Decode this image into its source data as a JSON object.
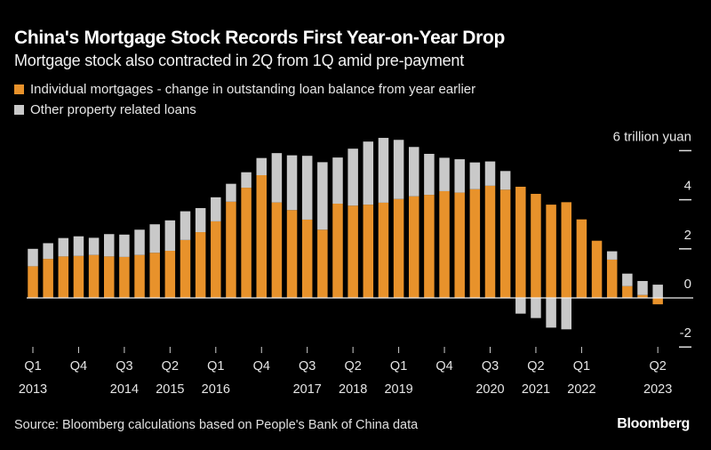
{
  "title": "China's Mortgage Stock Records First Year-on-Year Drop",
  "subtitle": "Mortgage stock also contracted in 2Q from 1Q amid pre-payment",
  "source": "Source: Bloomberg calculations based on People's Bank of China data",
  "logo": "Bloomberg",
  "colors": {
    "background": "#000000",
    "individual": "#e8922b",
    "other": "#c9c9c9",
    "text": "#ffffff"
  },
  "chart_data": {
    "type": "bar",
    "stacked": true,
    "title": "China's Mortgage Stock Records First Year-on-Year Drop",
    "unit_label": "6 trillion yuan",
    "ylim": [
      -2.6,
      6.6
    ],
    "yticks": [
      {
        "value": 6,
        "label": "6 trillion yuan"
      },
      {
        "value": 4,
        "label": "4"
      },
      {
        "value": 2,
        "label": "2"
      },
      {
        "value": 0,
        "label": "0"
      },
      {
        "value": -2,
        "label": "-2"
      }
    ],
    "legend_position": "top-left",
    "grid": false,
    "categories": [
      "Q1 2013",
      "Q2 2013",
      "Q3 2013",
      "Q4 2013",
      "Q1 2014",
      "Q2 2014",
      "Q3 2014",
      "Q4 2014",
      "Q1 2015",
      "Q2 2015",
      "Q3 2015",
      "Q4 2015",
      "Q1 2016",
      "Q2 2016",
      "Q3 2016",
      "Q4 2016",
      "Q1 2017",
      "Q2 2017",
      "Q3 2017",
      "Q4 2017",
      "Q1 2018",
      "Q2 2018",
      "Q3 2018",
      "Q4 2018",
      "Q1 2019",
      "Q2 2019",
      "Q3 2019",
      "Q4 2019",
      "Q1 2020",
      "Q2 2020",
      "Q3 2020",
      "Q4 2020",
      "Q1 2021",
      "Q2 2021",
      "Q3 2021",
      "Q4 2021",
      "Q1 2022",
      "Q2 2022",
      "Q3 2022",
      "Q4 2022",
      "Q1 2023",
      "Q2 2023"
    ],
    "xticks": [
      {
        "index": 0,
        "q": "Q1",
        "year": "2013"
      },
      {
        "index": 3,
        "q": "Q4",
        "year": ""
      },
      {
        "index": 6,
        "q": "Q3",
        "year": "2014"
      },
      {
        "index": 9,
        "q": "Q2",
        "year": "2015"
      },
      {
        "index": 12,
        "q": "Q1",
        "year": "2016"
      },
      {
        "index": 15,
        "q": "Q4",
        "year": ""
      },
      {
        "index": 18,
        "q": "Q3",
        "year": "2017"
      },
      {
        "index": 21,
        "q": "Q2",
        "year": "2018"
      },
      {
        "index": 24,
        "q": "Q1",
        "year": "2019"
      },
      {
        "index": 27,
        "q": "Q4",
        "year": ""
      },
      {
        "index": 30,
        "q": "Q3",
        "year": "2020"
      },
      {
        "index": 33,
        "q": "Q2",
        "year": "2021"
      },
      {
        "index": 36,
        "q": "Q1",
        "year": "2022"
      },
      {
        "index": 41,
        "q": "Q2",
        "year": "2023"
      }
    ],
    "series": [
      {
        "name": "Individual mortgages - change in outstanding loan balance from year earlier",
        "color": "#e8922b",
        "values": [
          1.29,
          1.59,
          1.69,
          1.71,
          1.75,
          1.69,
          1.67,
          1.75,
          1.84,
          1.92,
          2.36,
          2.68,
          3.12,
          3.92,
          4.49,
          5.0,
          3.89,
          3.58,
          3.19,
          2.78,
          3.84,
          3.76,
          3.8,
          3.88,
          4.03,
          4.14,
          4.2,
          4.35,
          4.29,
          4.43,
          4.57,
          4.41,
          4.53,
          4.24,
          3.8,
          3.9,
          3.2,
          2.33,
          1.56,
          0.48,
          0.12,
          -0.26
        ]
      },
      {
        "name": "Other property related loans",
        "color": "#c9c9c9",
        "values": [
          0.71,
          0.64,
          0.75,
          0.8,
          0.7,
          0.91,
          0.91,
          1.03,
          1.16,
          1.24,
          1.17,
          0.98,
          0.98,
          0.73,
          0.63,
          0.7,
          2.01,
          2.23,
          2.6,
          2.75,
          1.88,
          2.32,
          2.57,
          2.64,
          2.41,
          2.01,
          1.67,
          1.36,
          1.36,
          1.09,
          0.99,
          0.76,
          -0.64,
          -0.82,
          -1.21,
          -1.28,
          0,
          0,
          0.34,
          0.51,
          0.57,
          0.54
        ]
      }
    ]
  }
}
